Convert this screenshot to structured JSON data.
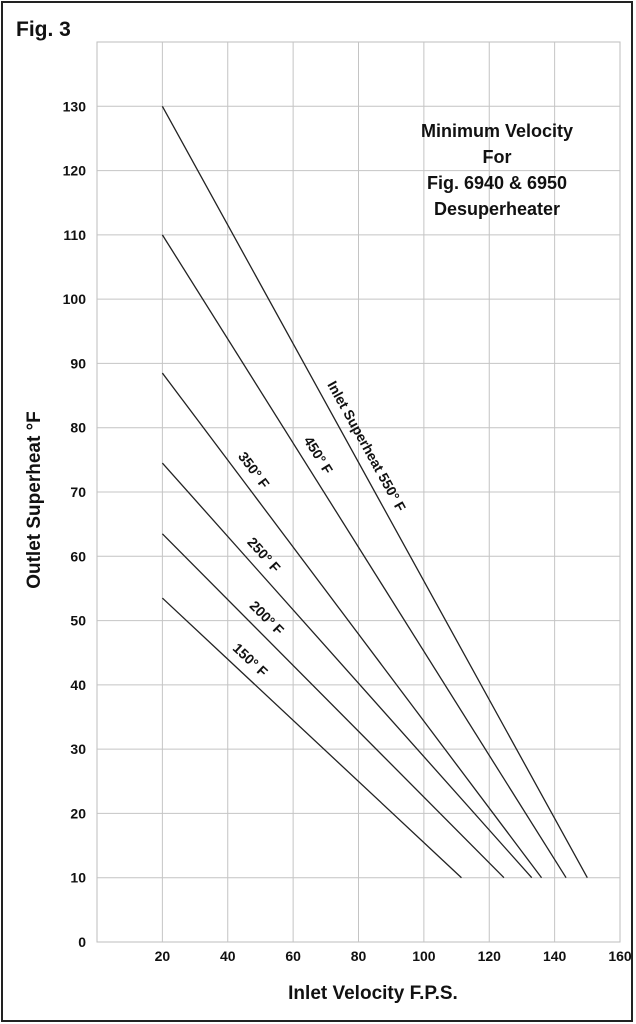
{
  "figure_label": "Fig. 3",
  "chart_data": {
    "type": "line",
    "title_lines": [
      "Minimum Velocity",
      "For",
      "Fig. 6940 & 6950",
      "Desuperheater"
    ],
    "xlabel": "Inlet Velocity F.P.S.",
    "ylabel": "Outlet Superheat °F",
    "xlim": [
      0,
      160
    ],
    "ylim": [
      0,
      140
    ],
    "xticks": [
      20,
      40,
      60,
      80,
      100,
      120,
      140,
      160
    ],
    "yticks": [
      0,
      10,
      20,
      30,
      40,
      50,
      60,
      70,
      80,
      90,
      100,
      110,
      120,
      130
    ],
    "grid": true,
    "series": [
      {
        "name": "Inlet Superheat 550° F",
        "x": [
          20,
          150
        ],
        "y": [
          130,
          10
        ]
      },
      {
        "name": "450° F",
        "x": [
          20,
          143.5
        ],
        "y": [
          110,
          10
        ]
      },
      {
        "name": "350° F",
        "x": [
          20,
          136
        ],
        "y": [
          88.5,
          10
        ]
      },
      {
        "name": "250° F",
        "x": [
          20,
          133
        ],
        "y": [
          74.5,
          10
        ]
      },
      {
        "name": "200° F",
        "x": [
          20,
          124.5
        ],
        "y": [
          63.5,
          10
        ]
      },
      {
        "name": "150° F",
        "x": [
          20,
          111.5
        ],
        "y": [
          53.5,
          10
        ]
      }
    ]
  }
}
